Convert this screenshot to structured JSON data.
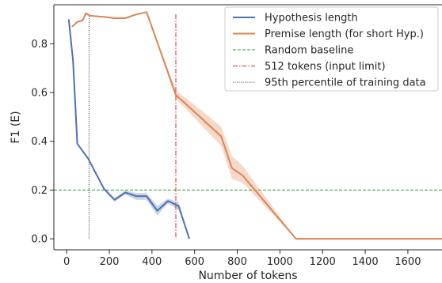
{
  "chart_data": {
    "type": "line",
    "xlabel": "Number of tokens",
    "ylabel": "F1 (E)",
    "xlim": [
      -60,
      1760
    ],
    "ylim": [
      -0.045,
      0.96
    ],
    "xticks": [
      0,
      200,
      400,
      600,
      800,
      1000,
      1200,
      1400,
      1600
    ],
    "yticks": [
      0.0,
      0.2,
      0.4,
      0.6,
      0.8
    ],
    "xtick_labels": [
      "0",
      "200",
      "400",
      "600",
      "800",
      "1000",
      "1200",
      "1400",
      "1600"
    ],
    "ytick_labels": [
      "0.0",
      "0.2",
      "0.4",
      "0.6",
      "0.8"
    ],
    "grid": false,
    "legend_position": "top-right",
    "series": [
      {
        "name": "Hypothesis length",
        "color": "#4c72b0",
        "style": "solid",
        "x": [
          10,
          30,
          50,
          100,
          175,
          225,
          275,
          325,
          375,
          425,
          475,
          525,
          575
        ],
        "y": [
          0.9,
          0.73,
          0.39,
          0.33,
          0.205,
          0.16,
          0.19,
          0.175,
          0.175,
          0.115,
          0.155,
          0.135,
          0.0
        ],
        "ci_low": [
          0.9,
          0.73,
          0.39,
          0.33,
          0.2,
          0.153,
          0.182,
          0.16,
          0.16,
          0.095,
          0.145,
          0.118,
          0.0
        ],
        "ci_high": [
          0.9,
          0.73,
          0.39,
          0.33,
          0.21,
          0.167,
          0.198,
          0.188,
          0.188,
          0.135,
          0.165,
          0.15,
          0.0
        ]
      },
      {
        "name": "Premise length (for short Hyp.)",
        "color": "#dd8452",
        "style": "solid",
        "x": [
          25,
          50,
          75,
          90,
          110,
          175,
          225,
          275,
          325,
          375,
          512,
          600,
          725,
          775,
          825,
          1075,
          1760
        ],
        "y": [
          0.87,
          0.89,
          0.895,
          0.925,
          0.915,
          0.91,
          0.905,
          0.905,
          0.92,
          0.93,
          0.59,
          0.52,
          0.42,
          0.29,
          0.26,
          0.0,
          0.0
        ],
        "ci_low": [
          0.87,
          0.89,
          0.895,
          0.925,
          0.915,
          0.91,
          0.905,
          0.905,
          0.92,
          0.93,
          0.575,
          0.495,
          0.38,
          0.245,
          0.23,
          0.0,
          0.0
        ],
        "ci_high": [
          0.87,
          0.89,
          0.895,
          0.925,
          0.915,
          0.91,
          0.905,
          0.905,
          0.92,
          0.93,
          0.61,
          0.55,
          0.46,
          0.34,
          0.3,
          0.0,
          0.0
        ]
      }
    ],
    "reference_lines": [
      {
        "name": "Random baseline",
        "orientation": "horizontal",
        "value": 0.2,
        "color": "#2ca02c",
        "style": "dashed"
      },
      {
        "name": "512 tokens (input limit)",
        "orientation": "vertical",
        "value": 512,
        "color": "#d62728",
        "style": "dashdot"
      },
      {
        "name": "95th percentile of training data",
        "orientation": "vertical",
        "value": 105,
        "color": "#333333",
        "style": "dotted"
      }
    ]
  }
}
